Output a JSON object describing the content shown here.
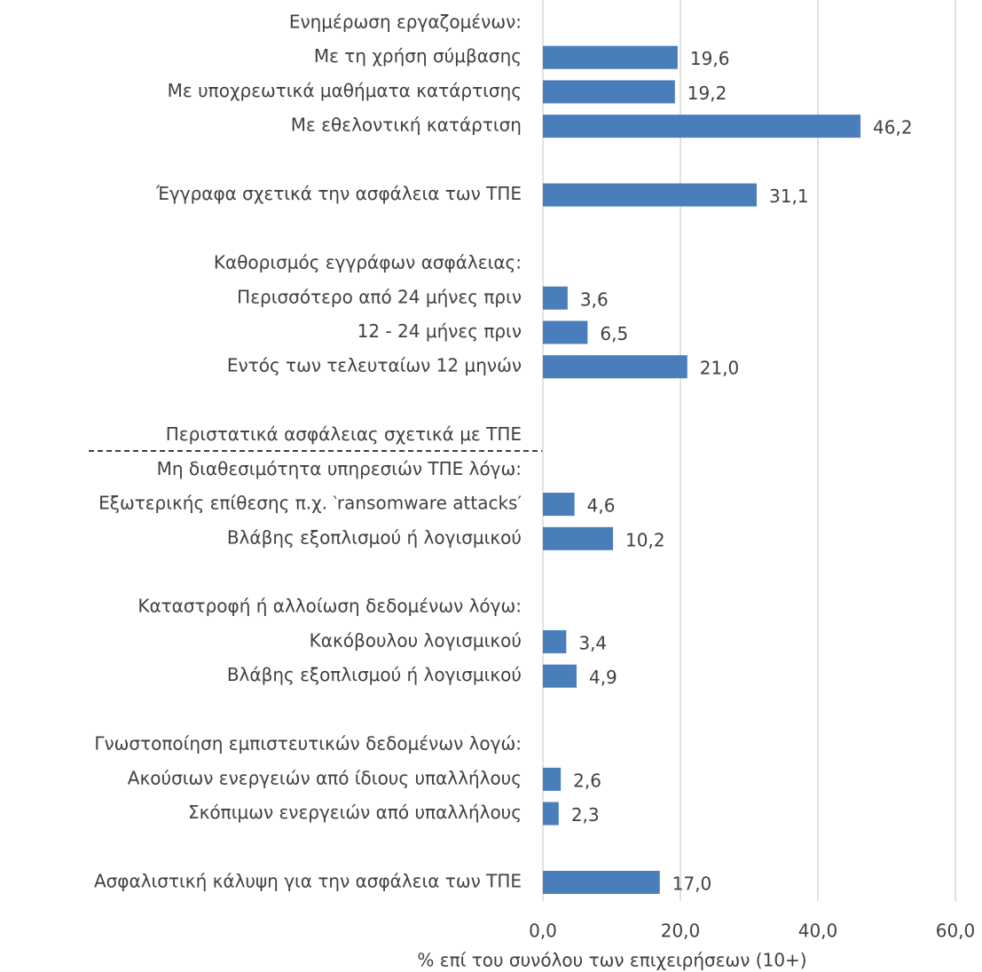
{
  "chart_data": {
    "type": "bar",
    "orientation": "horizontal",
    "x_label": "% επί του συνόλου των επιχειρήσεων (10+)",
    "categories": [
      "Ενημέρωση εργαζομένων:",
      "Με τη χρήση σύμβασης ",
      "Με υποχρεωτικά μαθήματα κατάρτισης ",
      "Με εθελοντική κατάρτιση ",
      null,
      "Έγγραφα σχετικά την ασφάλεια των ΤΠΕ",
      null,
      "Καθορισμός εγγράφων ασφάλειας:",
      "Περισσότερο από 24 μήνες πριν",
      "12 - 24 μήνες πριν",
      "Εντός των τελευταίων 12 μηνών",
      null,
      "Περιστατικά ασφάλειας σχετικά με ΤΠΕ",
      "Μη διαθεσιμότητα υπηρεσιών ΤΠΕ λόγω:",
      "Εξωτερικής επίθεσης π.χ. ‵ransomware attacks′",
      "Βλάβης εξοπλισμού ή λογισμικού ",
      null,
      "Καταστροφή ή αλλοίωση δεδομένων λόγω:",
      "Κακόβουλου λογισμικού",
      "Βλάβης εξοπλισμού ή λογισμικού ",
      null,
      "Γνωστοποίηση εμπιστευτικών δεδομένων λογώ:",
      "Ακούσιων ενεργειών από ίδιους υπαλλήλους ",
      "Σκόπιμων ενεργειών από υπαλλήλους",
      null,
      "Ασφαλιστική κάλυψη για την ασφάλεια των ΤΠΕ"
    ],
    "values": [
      null,
      19.6,
      19.2,
      46.2,
      null,
      31.1,
      null,
      null,
      3.6,
      6.5,
      21.0,
      null,
      null,
      null,
      4.6,
      10.2,
      null,
      null,
      3.4,
      4.9,
      null,
      null,
      2.6,
      2.3,
      null,
      17.0
    ],
    "value_labels": [
      null,
      "19,6",
      "19,2",
      "46,2",
      null,
      "31,1",
      null,
      null,
      "3,6",
      "6,5",
      "21,0",
      null,
      null,
      null,
      "4,6",
      "10,2",
      null,
      null,
      "3,4",
      "4,9",
      null,
      null,
      "2,6",
      "2,3",
      null,
      "17,0"
    ],
    "color": "#4a7ebb",
    "xlim": [
      0,
      60
    ],
    "xticks": [
      {
        "value": 0,
        "label": "0,0"
      },
      {
        "value": 20,
        "label": "20,0"
      },
      {
        "value": 40,
        "label": "40,0"
      },
      {
        "value": 60,
        "label": "60,0"
      }
    ],
    "grid": true
  }
}
